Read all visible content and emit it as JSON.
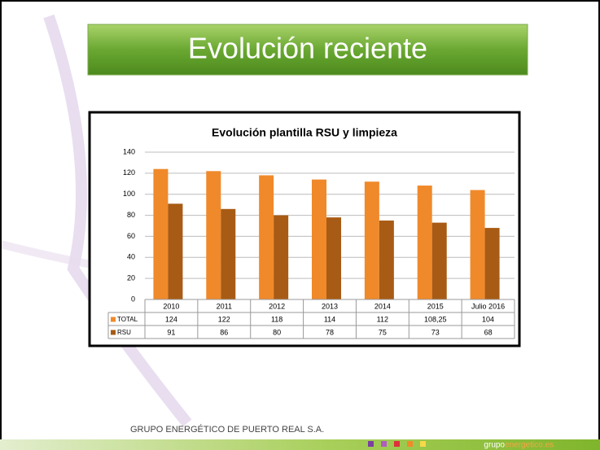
{
  "header": {
    "title": "Evolución reciente"
  },
  "chart_data": {
    "type": "bar",
    "title": "Evolución plantilla RSU y limpieza",
    "categories": [
      "2010",
      "2011",
      "2012",
      "2013",
      "2014",
      "2015",
      "Julio 2016"
    ],
    "series": [
      {
        "name": "TOTAL",
        "color": "#f0892a",
        "values": [
          124,
          122,
          118,
          114,
          112,
          108.25,
          104
        ],
        "value_labels": [
          "124",
          "122",
          "118",
          "114",
          "112",
          "108,25",
          "104"
        ]
      },
      {
        "name": "RSU",
        "color": "#a85b14",
        "values": [
          91,
          86,
          80,
          78,
          75,
          73,
          68
        ]
      }
    ],
    "ylim": [
      0,
      140
    ],
    "yticks": [
      0,
      20,
      40,
      60,
      80,
      100,
      120,
      140
    ],
    "grid": true
  },
  "footer": {
    "company": "GRUPO ENERGÉTICO DE PUERTO REAL S.A.",
    "brand_prefix": "grupo",
    "brand_suffix": "energetico.es"
  }
}
